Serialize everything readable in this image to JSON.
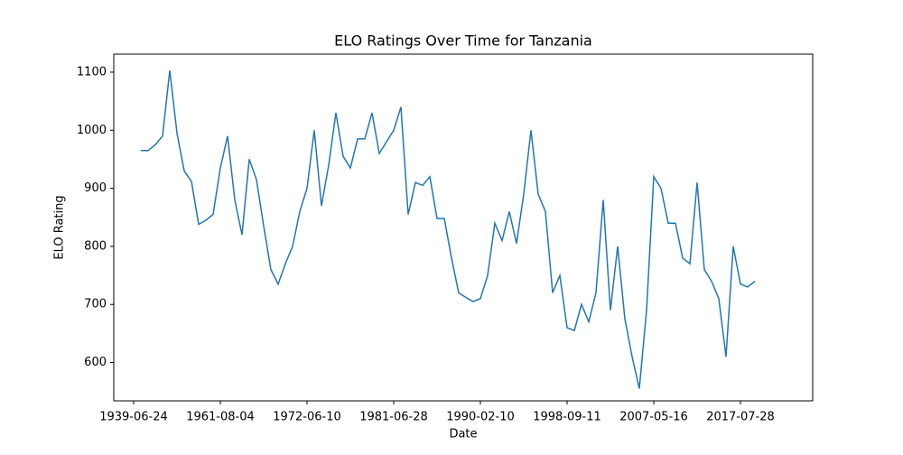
{
  "chart_data": {
    "type": "line",
    "title": "ELO Ratings Over Time for Tanzania",
    "x_label": "Date",
    "y_label": "ELO Rating",
    "categories": [
      "1939-06-24",
      null,
      null,
      null,
      null,
      null,
      null,
      null,
      null,
      null,
      null,
      null,
      "1961-08-04",
      null,
      null,
      null,
      null,
      null,
      null,
      null,
      null,
      null,
      null,
      null,
      "1972-06-10",
      null,
      null,
      null,
      null,
      null,
      null,
      null,
      null,
      null,
      null,
      null,
      "1981-06-28",
      null,
      null,
      null,
      null,
      null,
      null,
      null,
      null,
      null,
      null,
      null,
      "1990-02-10",
      null,
      null,
      null,
      null,
      null,
      null,
      null,
      null,
      null,
      null,
      null,
      "1998-09-11",
      null,
      null,
      null,
      null,
      null,
      null,
      null,
      null,
      null,
      null,
      null,
      "2007-05-16",
      null,
      null,
      null,
      null,
      null,
      null,
      null,
      null,
      null,
      null,
      null,
      "2017-07-28",
      null,
      null
    ],
    "series": [
      {
        "name": "Tanzania",
        "color": "#1f77b4",
        "values": [
          null,
          965,
          965,
          975,
          990,
          1103,
          995,
          930,
          912,
          838,
          845,
          855,
          935,
          990,
          880,
          820,
          950,
          915,
          835,
          760,
          735,
          770,
          800,
          860,
          900,
          1000,
          870,
          940,
          1030,
          955,
          935,
          985,
          985,
          1030,
          960,
          980,
          1000,
          1040,
          855,
          910,
          905,
          920,
          848,
          848,
          780,
          720,
          712,
          705,
          710,
          750,
          840,
          810,
          860,
          805,
          890,
          1000,
          890,
          860,
          720,
          750,
          660,
          655,
          700,
          670,
          720,
          880,
          690,
          800,
          675,
          610,
          555,
          690,
          920,
          900,
          840,
          840,
          780,
          770,
          910,
          760,
          740,
          710,
          610,
          800,
          735,
          730,
          740
        ]
      }
    ],
    "xlim": [
      -2.75,
      94
    ],
    "ylim": [
      534,
      1131
    ],
    "yticks": [
      600,
      700,
      800,
      900,
      1000,
      1100
    ]
  }
}
